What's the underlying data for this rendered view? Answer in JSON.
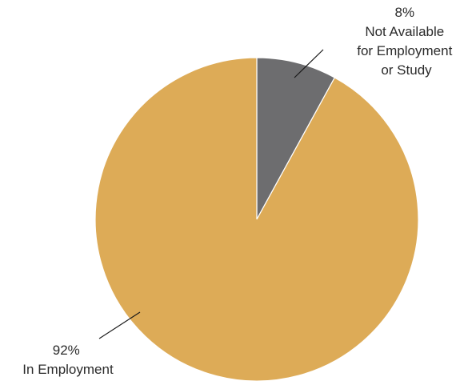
{
  "chart_data": {
    "type": "pie",
    "title": "",
    "start": "12 o'clock",
    "direction": "clockwise",
    "slices": [
      {
        "value": 8,
        "percent_label": "8%",
        "label_lines": [
          "Not Available",
          "for Employment",
          "or Study"
        ],
        "color": "#6d6d6f"
      },
      {
        "value": 92,
        "percent_label": "92%",
        "label_lines": [
          "In Employment"
        ],
        "color": "#ddab57"
      }
    ],
    "slice_edge_color": "#ffffff",
    "legend": "none"
  }
}
